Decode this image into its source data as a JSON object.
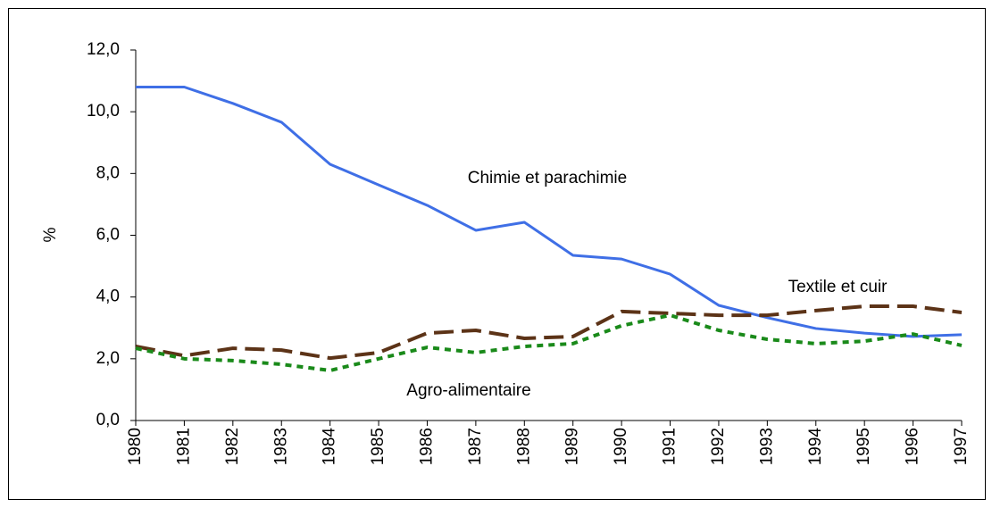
{
  "chart_data": {
    "type": "line",
    "y_label": "%",
    "categories": [
      "1980",
      "1981",
      "1982",
      "1983",
      "1984",
      "1985",
      "1986",
      "1987",
      "1988",
      "1989",
      "1990",
      "1991",
      "1992",
      "1993",
      "1994",
      "1995",
      "1996",
      "1997"
    ],
    "series": [
      {
        "name": "Chimie et parachimie",
        "color": "#3f6fe6",
        "dash": "solid",
        "values": [
          10.8,
          10.8,
          10.27,
          9.66,
          8.3,
          7.63,
          6.97,
          6.16,
          6.42,
          5.35,
          5.23,
          4.74,
          3.73,
          3.33,
          2.98,
          2.83,
          2.72,
          2.78
        ]
      },
      {
        "name": "Textile et cuir",
        "color": "#5c3317",
        "dash": "dashed",
        "values": [
          2.4,
          2.1,
          2.34,
          2.28,
          2.02,
          2.2,
          2.83,
          2.92,
          2.66,
          2.72,
          3.53,
          3.47,
          3.41,
          3.41,
          3.56,
          3.7,
          3.7,
          3.5
        ]
      },
      {
        "name": "Agro-alimentaire",
        "color": "#1a8a1a",
        "dash": "dotted",
        "values": [
          2.34,
          2.0,
          1.94,
          1.82,
          1.62,
          2.0,
          2.37,
          2.2,
          2.4,
          2.49,
          3.07,
          3.41,
          2.92,
          2.63,
          2.49,
          2.57,
          2.8,
          2.43
        ]
      }
    ],
    "ylim": [
      0,
      12
    ],
    "yticks": [
      {
        "value": 0,
        "label": "0,0"
      },
      {
        "value": 2,
        "label": "2,0"
      },
      {
        "value": 4,
        "label": "4,0"
      },
      {
        "value": 6,
        "label": "6,0"
      },
      {
        "value": 8,
        "label": "8,0"
      },
      {
        "value": 10,
        "label": "10,0"
      },
      {
        "value": 12,
        "label": "12,0"
      }
    ],
    "grid": false
  }
}
